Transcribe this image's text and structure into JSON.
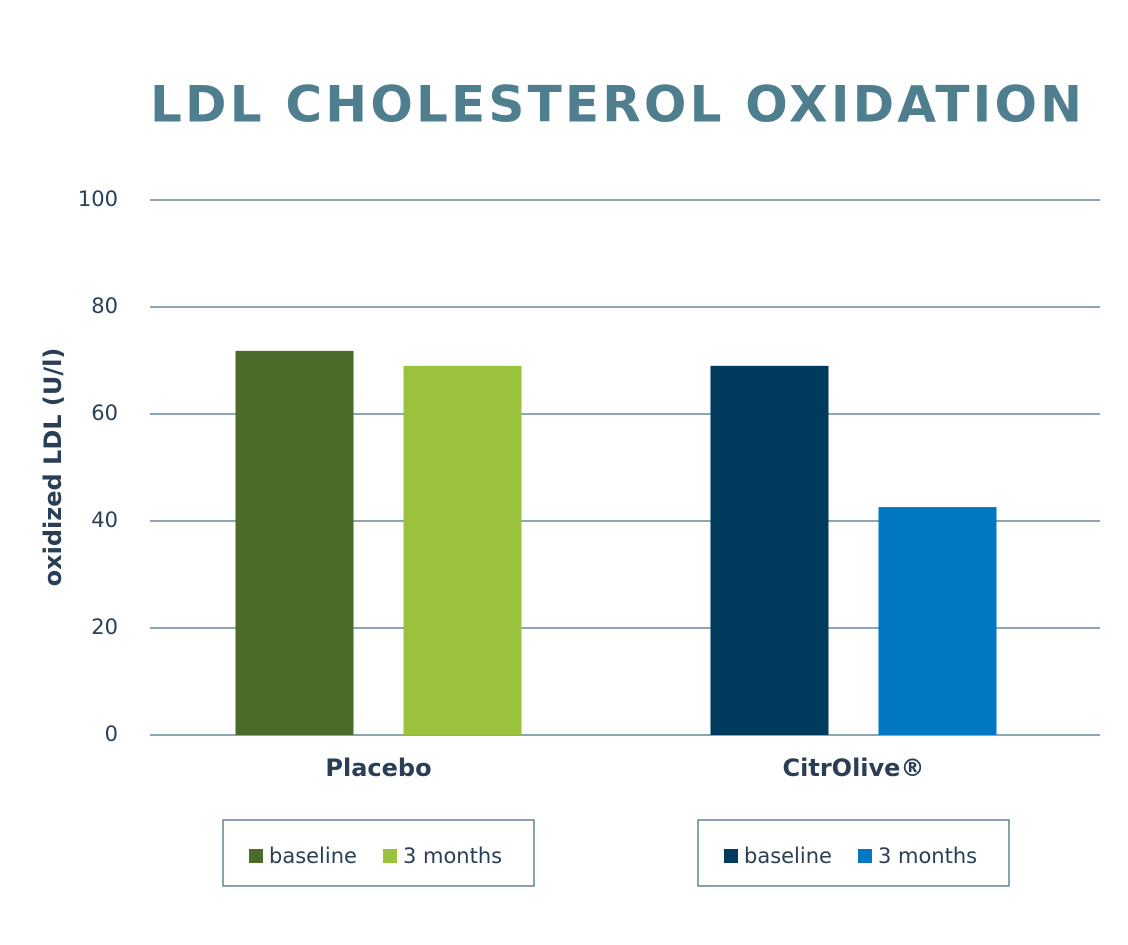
{
  "chart_data": {
    "type": "bar",
    "title": "LDL CHOLESTEROL OXIDATION",
    "y_label": "oxidized LDL (U/l)",
    "categories": [
      "Placebo",
      "CitrOlive®"
    ],
    "series": [
      {
        "name": "baseline",
        "colors": [
          "#4a6b2a",
          "#003a5d"
        ],
        "values": [
          71.8,
          69
        ]
      },
      {
        "name": "3 months",
        "colors": [
          "#9bc23c",
          "#0077c0"
        ],
        "values": [
          69,
          42.6
        ]
      }
    ],
    "ylim": [
      0,
      100
    ],
    "yticks": [
      0,
      20,
      40,
      60,
      80,
      100
    ],
    "grid": true
  }
}
